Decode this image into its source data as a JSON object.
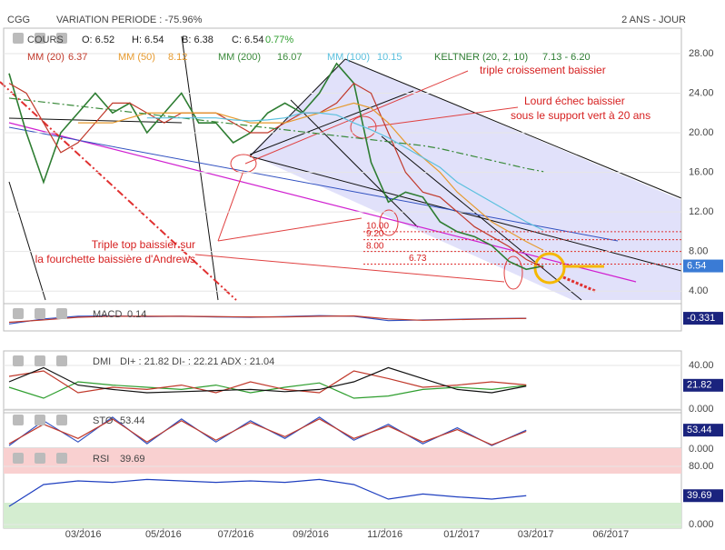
{
  "header": {
    "symbol": "CGG",
    "variation": "VARIATION PERIODE : -75.96%",
    "period": "2 ANS - JOUR"
  },
  "chart_data": [
    {
      "type": "line",
      "title": "COURS",
      "ohlc": [
        "O: 6.52",
        "H: 6.54",
        "B: 6.38",
        "C: 6.54"
      ],
      "change": "0.77%",
      "x": [
        0,
        2,
        4,
        6,
        8,
        10,
        12,
        14,
        16,
        18,
        20,
        22,
        24,
        26,
        28,
        30,
        32,
        34,
        36,
        38,
        40,
        42,
        44,
        46,
        48,
        50,
        52,
        54,
        56,
        58,
        60,
        62
      ],
      "series": [
        {
          "name": "COURS",
          "color": "#2e7d32",
          "values": [
            26,
            20,
            15,
            20,
            22,
            24,
            22,
            23,
            20,
            22,
            24,
            21,
            21,
            19,
            20,
            22,
            23,
            22,
            24,
            27,
            25,
            17,
            13,
            14,
            13.5,
            11,
            10,
            9.5,
            8.6,
            7,
            6.2,
            6.54
          ]
        },
        {
          "name": "MM (20)",
          "last": "6.37",
          "color": "#c0392b",
          "values": [
            25,
            24,
            21,
            18,
            19,
            21,
            23,
            23,
            22,
            21,
            22,
            22,
            22,
            21,
            20,
            20,
            21,
            22,
            22,
            23,
            25,
            24,
            20,
            16,
            14,
            13.5,
            12,
            10.5,
            9.5,
            8.5,
            7.2,
            6.37
          ]
        },
        {
          "name": "MM (50)",
          "last": "8.12",
          "color": "#e69a2e",
          "values": [
            null,
            null,
            null,
            null,
            21,
            21,
            21,
            21.5,
            22,
            22,
            22,
            22,
            22,
            21.5,
            21,
            21,
            21,
            21.5,
            22,
            22.5,
            23,
            22.5,
            21,
            19,
            17.5,
            16,
            14,
            12.5,
            11,
            10,
            9,
            8.12
          ]
        },
        {
          "name": "MM (200)",
          "last": "16.07",
          "color": "#3a8a3a",
          "values": [
            23.5,
            23.3,
            23.1,
            22.9,
            22.7,
            22.5,
            22.3,
            22.1,
            21.9,
            21.7,
            21.5,
            21.3,
            21.1,
            20.9,
            20.7,
            20.5,
            20.3,
            20.1,
            19.9,
            19.7,
            19.5,
            19.3,
            19.1,
            18.9,
            18.7,
            18.4,
            18.0,
            17.6,
            17.2,
            16.8,
            16.4,
            16.07
          ]
        },
        {
          "name": "MM (100)",
          "last": "10.15",
          "color": "#5bc0de",
          "values": [
            null,
            null,
            null,
            null,
            null,
            null,
            null,
            null,
            21.5,
            21.5,
            21.5,
            21.5,
            21.5,
            21.3,
            21.2,
            21.3,
            21.5,
            22,
            22,
            21.8,
            21,
            20.3,
            19.5,
            18.5,
            17.5,
            16.5,
            15,
            14,
            13,
            12,
            11,
            10.15
          ]
        }
      ],
      "keltner": {
        "name": "KELTNER (20, 2, 10)",
        "last": "7.13 - 6.20",
        "color": "#2e7d32"
      },
      "levels": [
        {
          "value": 10,
          "label": "10.00"
        },
        {
          "value": 9.2,
          "label": "9.20"
        },
        {
          "value": 8,
          "label": "8.00"
        },
        {
          "value": 6.73,
          "label": "6.73"
        }
      ],
      "last_label": "6.54",
      "annotations": [
        "triple croissement baissier",
        "Lourd échec baissier",
        "sous le support vert à 20 ans",
        "Triple top baissier sur",
        "la fourchette baissière d'Andrews"
      ],
      "xlim": [
        0,
        78
      ],
      "ylim": [
        3.1,
        30.2
      ],
      "yticks": [
        {
          "value": 4,
          "label": "4.00"
        },
        {
          "value": 8,
          "label": "8.00"
        },
        {
          "value": 12,
          "label": "12.00"
        },
        {
          "value": 16,
          "label": "16.00"
        },
        {
          "value": 20,
          "label": "20.00"
        },
        {
          "value": 24,
          "label": "24.00"
        },
        {
          "value": 28,
          "label": "28.00"
        }
      ]
    },
    {
      "type": "line",
      "title": "MACD",
      "value": "0.14",
      "last_label": "-0.331",
      "x": [
        0,
        4,
        8,
        12,
        16,
        20,
        24,
        28,
        32,
        36,
        40,
        44,
        48,
        52,
        56,
        60
      ],
      "xlim": [
        0,
        78
      ],
      "ylim": [
        -3,
        3
      ],
      "yticks": [],
      "series": [
        {
          "color": "#3050c0",
          "values": [
            -2,
            -0.5,
            0.3,
            0.4,
            0.2,
            0.3,
            0.1,
            0,
            0.2,
            0.5,
            0.3,
            -1,
            -0.8,
            -0.6,
            -0.4,
            -0.3
          ]
        },
        {
          "color": "#c0392b",
          "values": [
            -1.5,
            -0.8,
            0,
            0.3,
            0.3,
            0.3,
            0.2,
            0.1,
            0.1,
            0.3,
            0.4,
            -0.5,
            -0.9,
            -0.7,
            -0.5,
            -0.35
          ]
        }
      ]
    },
    {
      "type": "line",
      "title": "DMI",
      "value": "DI+ : 21.82 DI- : 22.21 ADX : 21.04",
      "last_label": "21.82",
      "x": [
        0,
        4,
        8,
        12,
        16,
        20,
        24,
        28,
        32,
        36,
        40,
        44,
        48,
        52,
        56,
        60
      ],
      "xlim": [
        0,
        78
      ],
      "ylim": [
        0,
        50
      ],
      "yticks": [
        {
          "value": 40,
          "label": "40.00"
        },
        {
          "value": 0,
          "label": "0.000"
        }
      ],
      "series": [
        {
          "color": "#2e9e2e",
          "values": [
            20,
            10,
            25,
            22,
            20,
            18,
            22,
            15,
            20,
            24,
            10,
            12,
            18,
            20,
            18,
            21.82
          ]
        },
        {
          "color": "#c0392b",
          "values": [
            30,
            35,
            15,
            20,
            18,
            22,
            15,
            25,
            18,
            15,
            35,
            28,
            20,
            22,
            25,
            22.21
          ]
        },
        {
          "color": "#111111",
          "values": [
            25,
            38,
            22,
            18,
            15,
            16,
            17,
            18,
            16,
            18,
            25,
            38,
            28,
            18,
            15,
            21.04
          ]
        }
      ]
    },
    {
      "type": "line",
      "title": "STO",
      "value": "53.44",
      "last_label": "53.44",
      "x": [
        0,
        4,
        8,
        12,
        16,
        20,
        24,
        28,
        32,
        36,
        40,
        44,
        48,
        52,
        56,
        60
      ],
      "xlim": [
        0,
        78
      ],
      "ylim": [
        0,
        100
      ],
      "yticks": [
        {
          "value": 0,
          "label": "0.000"
        }
      ],
      "series": [
        {
          "color": "#3050c0",
          "values": [
            10,
            80,
            20,
            90,
            15,
            85,
            20,
            80,
            30,
            90,
            25,
            70,
            15,
            60,
            10,
            53.44
          ]
        },
        {
          "color": "#c0392b",
          "values": [
            15,
            70,
            30,
            85,
            20,
            80,
            25,
            75,
            35,
            85,
            30,
            65,
            20,
            55,
            12,
            50
          ]
        }
      ]
    },
    {
      "type": "line",
      "title": "RSI",
      "value": "39.69",
      "last_label": "39.69",
      "x": [
        0,
        4,
        8,
        12,
        16,
        20,
        24,
        28,
        32,
        36,
        40,
        44,
        48,
        52,
        56,
        60
      ],
      "xlim": [
        0,
        78
      ],
      "ylim": [
        0,
        100
      ],
      "zones": [
        30,
        70
      ],
      "yticks": [
        {
          "value": 80,
          "label": "80.00"
        },
        {
          "value": 0,
          "label": "0.000"
        }
      ],
      "xticks": [
        {
          "value": 8.6,
          "label": "03/2016"
        },
        {
          "value": 17.9,
          "label": "05/2016"
        },
        {
          "value": 26.3,
          "label": "07/2016"
        },
        {
          "value": 35,
          "label": "09/2016"
        },
        {
          "value": 43.6,
          "label": "11/2016"
        },
        {
          "value": 52.5,
          "label": "01/2017"
        },
        {
          "value": 61.1,
          "label": "03/2017"
        },
        {
          "value": 69.8,
          "label": "06/2017"
        }
      ],
      "series": [
        {
          "color": "#2040c0",
          "values": [
            25,
            55,
            60,
            58,
            62,
            60,
            58,
            60,
            58,
            62,
            55,
            35,
            42,
            38,
            35,
            39.69
          ]
        }
      ]
    }
  ]
}
